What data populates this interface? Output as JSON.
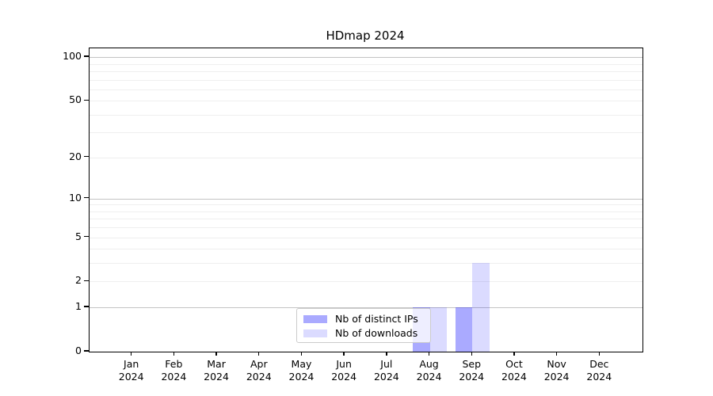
{
  "chart_data": {
    "type": "bar",
    "title": "HDmap 2024",
    "categories": [
      "Jan",
      "Feb",
      "Mar",
      "Apr",
      "May",
      "Jun",
      "Jul",
      "Aug",
      "Sep",
      "Oct",
      "Nov",
      "Dec"
    ],
    "x_year_label": "2024",
    "series": [
      {
        "name": "Nb of distinct IPs",
        "color_hex": "#aaaaff",
        "color_rgba": "rgba(0,0,255,0.335)",
        "values": [
          0,
          0,
          0,
          0,
          0,
          0,
          0,
          1,
          1,
          0,
          0,
          0
        ]
      },
      {
        "name": "Nb of downloads",
        "color_hex": "#dbdbff",
        "color_rgba": "rgba(0,0,255,0.14)",
        "values": [
          0,
          0,
          0,
          0,
          0,
          0,
          0,
          1,
          3,
          0,
          0,
          0
        ]
      }
    ],
    "xlabel": "",
    "ylabel": "",
    "yscale": "log1p",
    "ylim": [
      0,
      115
    ],
    "y_tick_labels": [
      "0",
      "1",
      "2",
      "5",
      "10",
      "20",
      "50",
      "100"
    ],
    "y_tick_values": [
      0,
      1,
      2,
      5,
      10,
      20,
      50,
      100
    ],
    "y_major_gridlines": [
      1,
      10,
      100
    ],
    "y_minor_gridlines": [
      2,
      3,
      4,
      5,
      6,
      7,
      8,
      9,
      20,
      30,
      40,
      50,
      60,
      70,
      80,
      90
    ],
    "grid": true,
    "legend_position": "lower center",
    "colors": {
      "major_grid": "#c4c4c4",
      "minor_grid": "#efefef",
      "axis": "#000000",
      "legend_border": "#cccccc"
    }
  }
}
